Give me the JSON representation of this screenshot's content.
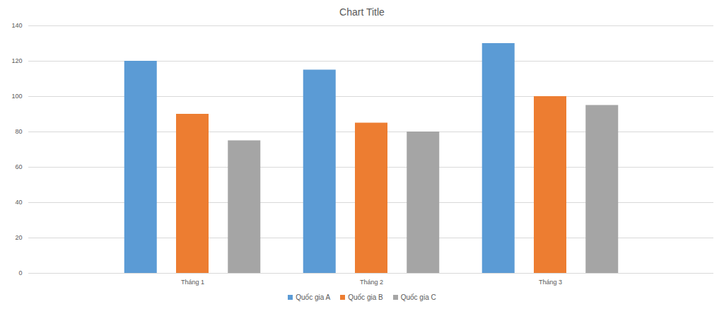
{
  "chart_data": {
    "type": "bar",
    "title": "Chart Title",
    "categories": [
      "Tháng 1",
      "Tháng 2",
      "Tháng 3"
    ],
    "series": [
      {
        "name": "Quốc gia A",
        "color": "#5b9bd5",
        "values": [
          120,
          115,
          130
        ]
      },
      {
        "name": "Quốc gia B",
        "color": "#ed7d31",
        "values": [
          90,
          85,
          100
        ]
      },
      {
        "name": "Quốc gia C",
        "color": "#a5a5a5",
        "values": [
          75,
          80,
          95
        ]
      }
    ],
    "ylim": [
      0,
      140
    ],
    "yticks": [
      0,
      20,
      40,
      60,
      80,
      100,
      120,
      140
    ],
    "grid": true,
    "legend": "bottom"
  }
}
